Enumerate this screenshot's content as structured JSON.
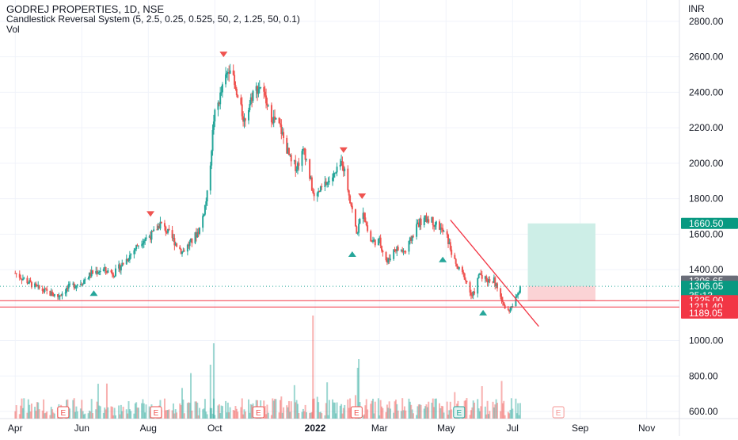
{
  "header": {
    "title": "GODREJ PROPERTIES, 1D, NSE",
    "indicator": "Candlestick Reversal System (5, 2.5, 0.25, 0.525, 50, 2, 1.25, 50, 0.1)",
    "volume_label": "Vol",
    "currency": "INR"
  },
  "colors": {
    "up": "#26a69a",
    "down": "#ef5350",
    "grid": "#f0f3fa",
    "axis_text": "#131722",
    "line_red": "#f23645",
    "target_zone": "#cdeee7",
    "stop_zone": "#fbd3d5",
    "current_price_dotted": "#26a69a"
  },
  "chart_data": {
    "type": "candlestick",
    "title": "GODREJ PROPERTIES, 1D, NSE",
    "y_unit": "INR",
    "y_ticks": [
      "600.00",
      "800.00",
      "1000.00",
      "1200.00",
      "1400.00",
      "1600.00",
      "1800.00",
      "2000.00",
      "2200.00",
      "2400.00",
      "2600.00",
      "2800.00"
    ],
    "x_ticks": [
      "Apr",
      "Jun",
      "Aug",
      "Oct",
      "2022",
      "Mar",
      "May",
      "Jul",
      "Sep",
      "Nov"
    ],
    "price_waypoints": [
      [
        "2021-04-01",
        1380
      ],
      [
        "2021-04-20",
        1300
      ],
      [
        "2021-05-01",
        1270
      ],
      [
        "2021-05-10",
        1250
      ],
      [
        "2021-05-20",
        1300
      ],
      [
        "2021-06-01",
        1330
      ],
      [
        "2021-06-10",
        1380
      ],
      [
        "2021-06-20",
        1400
      ],
      [
        "2021-07-01",
        1380
      ],
      [
        "2021-07-15",
        1480
      ],
      [
        "2021-07-25",
        1560
      ],
      [
        "2021-08-05",
        1600
      ],
      [
        "2021-08-12",
        1660
      ],
      [
        "2021-08-20",
        1600
      ],
      [
        "2021-09-01",
        1500
      ],
      [
        "2021-09-10",
        1560
      ],
      [
        "2021-09-18",
        1640
      ],
      [
        "2021-09-25",
        1850
      ],
      [
        "2021-09-30",
        2250
      ],
      [
        "2021-10-07",
        2400
      ],
      [
        "2021-10-15",
        2560
      ],
      [
        "2021-10-20",
        2400
      ],
      [
        "2021-10-28",
        2240
      ],
      [
        "2021-11-05",
        2400
      ],
      [
        "2021-11-12",
        2440
      ],
      [
        "2021-11-20",
        2280
      ],
      [
        "2021-11-30",
        2200
      ],
      [
        "2021-12-10",
        2000
      ],
      [
        "2021-12-15",
        1980
      ],
      [
        "2021-12-22",
        2080
      ],
      [
        "2021-12-31",
        1800
      ],
      [
        "2022-01-10",
        1880
      ],
      [
        "2022-01-20",
        1940
      ],
      [
        "2022-01-26",
        2010
      ],
      [
        "2022-02-02",
        1800
      ],
      [
        "2022-02-08",
        1600
      ],
      [
        "2022-02-14",
        1740
      ],
      [
        "2022-02-20",
        1560
      ],
      [
        "2022-03-01",
        1560
      ],
      [
        "2022-03-08",
        1440
      ],
      [
        "2022-03-15",
        1520
      ],
      [
        "2022-03-25",
        1500
      ],
      [
        "2022-04-05",
        1660
      ],
      [
        "2022-04-15",
        1690
      ],
      [
        "2022-04-25",
        1640
      ],
      [
        "2022-05-02",
        1580
      ],
      [
        "2022-05-10",
        1420
      ],
      [
        "2022-05-18",
        1360
      ],
      [
        "2022-05-25",
        1240
      ],
      [
        "2022-06-01",
        1380
      ],
      [
        "2022-06-08",
        1340
      ],
      [
        "2022-06-14",
        1340
      ],
      [
        "2022-06-20",
        1240
      ],
      [
        "2022-06-26",
        1160
      ],
      [
        "2022-07-02",
        1200
      ],
      [
        "2022-07-08",
        1306
      ]
    ],
    "volume_axis_max_equivalent": "price-scale overlay",
    "markers": {
      "sell": [
        [
          "2021-08-03",
          1680
        ],
        [
          "2021-10-09",
          2580
        ],
        [
          "2022-01-27",
          2040
        ],
        [
          "2022-02-13",
          1780
        ]
      ],
      "buy": [
        [
          "2021-06-12",
          1310
        ],
        [
          "2022-02-04",
          1530
        ],
        [
          "2022-04-28",
          1500
        ],
        [
          "2022-06-04",
          1200
        ]
      ],
      "earnings": [
        "2021-05-15",
        "2021-08-08",
        "2021-11-10",
        "2022-02-08",
        "2022-05-13",
        "2022-08-12"
      ],
      "earnings_upcoming_index": 5,
      "earnings_past_green_index": 4
    },
    "trendline": {
      "start": [
        "2022-05-05",
        1680
      ],
      "end": [
        "2022-07-25",
        1080
      ]
    },
    "horizontal_lines": [
      1225.0,
      1189.05
    ],
    "position": {
      "start": "2022-07-15",
      "end": "2022-09-15",
      "entry": 1306.05,
      "target": 1660.5,
      "stop": 1225.0
    },
    "price_labels": {
      "target": "1660.50",
      "last": "1306.65",
      "current": "1306.05",
      "countdown": "35:13",
      "stop": "1225.00",
      "low1": "1211.40",
      "low2": "1189.05"
    },
    "ylim": [
      560,
      2920
    ],
    "xlim": [
      "2021-03-18",
      "2022-12-01"
    ]
  }
}
